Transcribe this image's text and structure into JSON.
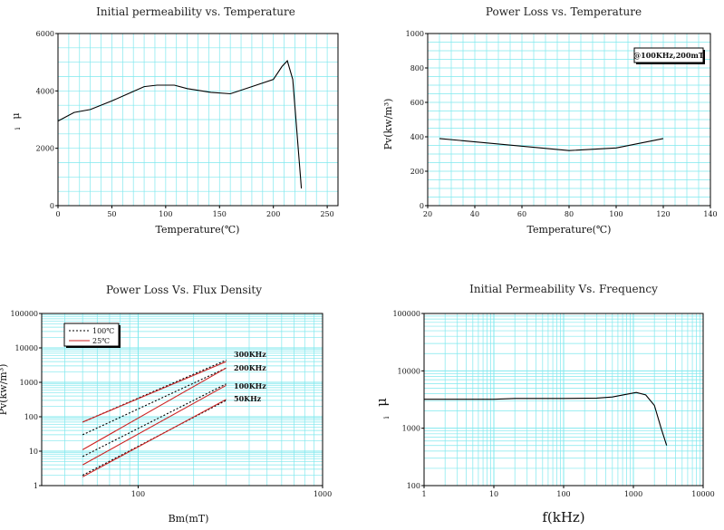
{
  "colors": {
    "grid": "#7fe8ee",
    "frame": "#000000",
    "curve": "#000000",
    "red": "#cc2222",
    "bg": "#ffffff"
  },
  "chart_data": [
    {
      "type": "line",
      "title": "Initial permeability vs. Temperature",
      "xlabel": "Temperature(℃)",
      "ylabel": "μ",
      "ylabel_sub": "i",
      "xlim": [
        0,
        260
      ],
      "ylim": [
        0,
        6000
      ],
      "xticks": [
        0,
        50,
        100,
        150,
        200,
        250
      ],
      "yticks": [
        0,
        2000,
        4000,
        6000
      ],
      "grid": "on",
      "series": [
        {
          "x": [
            0,
            15,
            30,
            50,
            65,
            80,
            92,
            108,
            120,
            142,
            160,
            180,
            200,
            208,
            213,
            218,
            226
          ],
          "y": [
            2950,
            3250,
            3350,
            3650,
            3900,
            4150,
            4200,
            4200,
            4080,
            3950,
            3900,
            4150,
            4400,
            4850,
            5050,
            4400,
            600
          ]
        }
      ]
    },
    {
      "type": "line",
      "title": "Power Loss vs. Temperature",
      "xlabel": "Temperature(℃)",
      "ylabel": "Pv(kw/m³)",
      "xlim": [
        20,
        140
      ],
      "ylim": [
        0,
        1000
      ],
      "xticks": [
        20,
        40,
        60,
        80,
        100,
        120,
        140
      ],
      "yticks": [
        0,
        200,
        400,
        600,
        800,
        1000
      ],
      "grid": "on",
      "annotation": "@100KHz,200mT",
      "series": [
        {
          "x": [
            25,
            80,
            100,
            120
          ],
          "y": [
            390,
            320,
            335,
            390
          ]
        }
      ]
    },
    {
      "type": "line",
      "title": "Power Loss Vs. Flux Density",
      "xlabel": "Bm(mT)",
      "ylabel": "Pv(kw/m³)",
      "xscale": "log",
      "yscale": "log",
      "xlim": [
        30,
        1000
      ],
      "ylim": [
        1,
        100000
      ],
      "xticks": [
        100,
        1000
      ],
      "yticks": [
        1,
        10,
        100,
        1000,
        10000,
        100000
      ],
      "grid": "on",
      "legend": {
        "placement": "top-left",
        "entries": [
          {
            "name": "100℃",
            "style": "dashed"
          },
          {
            "name": "25℃",
            "style": "solid-red"
          }
        ]
      },
      "curve_labels": [
        "300KHz",
        "200KHz",
        "100KHz",
        "50KHz"
      ],
      "series": [
        {
          "name": "300KHz",
          "temp": "100℃",
          "x": [
            50,
            300
          ],
          "y": [
            70,
            4400
          ]
        },
        {
          "name": "300KHz",
          "temp": "25℃",
          "x": [
            50,
            300
          ],
          "y": [
            70,
            4000
          ]
        },
        {
          "name": "200KHz",
          "temp": "100℃",
          "x": [
            50,
            300
          ],
          "y": [
            30,
            2600
          ]
        },
        {
          "name": "200KHz",
          "temp": "25℃",
          "x": [
            50,
            300
          ],
          "y": [
            11,
            2600
          ]
        },
        {
          "name": "100KHz",
          "temp": "100℃",
          "x": [
            50,
            300
          ],
          "y": [
            7,
            900
          ]
        },
        {
          "name": "100KHz",
          "temp": "25℃",
          "x": [
            50,
            300
          ],
          "y": [
            4,
            820
          ]
        },
        {
          "name": "50KHz",
          "temp": "100℃",
          "x": [
            50,
            300
          ],
          "y": [
            2,
            300
          ]
        },
        {
          "name": "50KHz",
          "temp": "25℃",
          "x": [
            50,
            300
          ],
          "y": [
            1.8,
            320
          ]
        }
      ]
    },
    {
      "type": "line",
      "title": "Initial Permeability Vs. Frequency",
      "xlabel": "f(kHz)",
      "ylabel": "μ",
      "ylabel_sub": "i",
      "xscale": "log",
      "yscale": "log",
      "xlim": [
        1,
        10000
      ],
      "ylim": [
        100,
        100000
      ],
      "xticks": [
        1,
        10,
        100,
        1000,
        10000
      ],
      "yticks": [
        100,
        1000,
        10000,
        100000
      ],
      "grid": "on",
      "series": [
        {
          "x": [
            1,
            10,
            20,
            100,
            300,
            500,
            800,
            1100,
            1500,
            2000,
            2500,
            3000
          ],
          "y": [
            3200,
            3200,
            3300,
            3300,
            3350,
            3500,
            3900,
            4200,
            3800,
            2500,
            1000,
            500
          ]
        }
      ]
    }
  ]
}
